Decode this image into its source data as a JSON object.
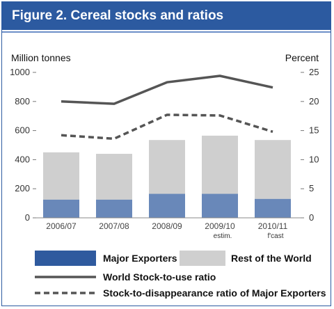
{
  "figure": {
    "title": "Figure 2. Cereal stocks and ratios"
  },
  "colors": {
    "frame": "#2c5aa0",
    "major_exporters": "#2f5a9e",
    "rest_of_world": "#cfcfcf",
    "line": "#555555",
    "grid": "#dddddd"
  },
  "chart_data": {
    "type": "bar",
    "categories": [
      "2006/07",
      "2007/08",
      "2008/09",
      "2009/10",
      "2010/11"
    ],
    "category_sublabels": [
      "",
      "",
      "",
      "estim.",
      "f'cast"
    ],
    "stacked": true,
    "series": [
      {
        "name": "Major Exporters",
        "type": "bar",
        "axis": "left",
        "values": [
          125,
          125,
          165,
          165,
          130
        ]
      },
      {
        "name": "Rest of the World",
        "type": "bar",
        "axis": "left",
        "values": [
          325,
          315,
          370,
          400,
          405
        ]
      },
      {
        "name": "World Stock-to-use ratio",
        "type": "line",
        "style": "solid",
        "axis": "right",
        "values": [
          20.0,
          19.6,
          23.3,
          24.4,
          22.4
        ]
      },
      {
        "name": "Stock-to-disappearance ratio of Major Exporters",
        "type": "line",
        "style": "dashed",
        "axis": "right",
        "values": [
          14.2,
          13.6,
          17.7,
          17.6,
          14.8
        ]
      }
    ],
    "ylabel_left": "Million tonnes",
    "ylabel_right": "Percent",
    "ylim_left": [
      0,
      1000
    ],
    "ylim_right": [
      0,
      25
    ],
    "yticks_left": [
      "0",
      "200",
      "400",
      "600",
      "800",
      "1000"
    ],
    "yticks_right": [
      "0",
      "5",
      "10",
      "15",
      "20",
      "25"
    ],
    "grid": false,
    "legend_position": "bottom"
  }
}
